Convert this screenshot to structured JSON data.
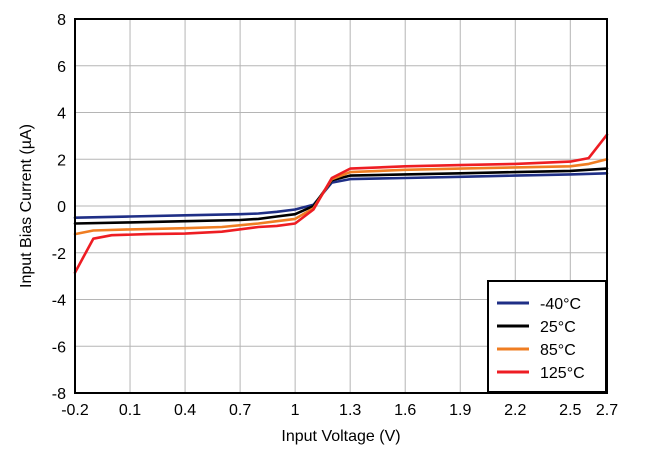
{
  "chart_data": {
    "type": "line",
    "xlabel": "Input Voltage (V)",
    "ylabel": "Input Bias Current (µA)",
    "xlim": [
      -0.2,
      2.7
    ],
    "ylim": [
      -8,
      8
    ],
    "x_ticks": [
      -0.2,
      0.1,
      0.4,
      0.7,
      1,
      1.3,
      1.6,
      1.9,
      2.2,
      2.5,
      2.7
    ],
    "x_tick_labels": [
      "-0.2",
      "0.1",
      "0.4",
      "0.7",
      "1",
      "1.3",
      "1.6",
      "1.9",
      "2.2",
      "2.5",
      "2.7"
    ],
    "y_ticks": [
      -8,
      -6,
      -4,
      -2,
      0,
      2,
      4,
      6,
      8
    ],
    "y_tick_labels": [
      "-8",
      "-6",
      "-4",
      "-2",
      "0",
      "2",
      "4",
      "6",
      "8"
    ],
    "grid": true,
    "legend_position": "bottom-right",
    "series": [
      {
        "name": "-40°C",
        "color": "#1f2f86",
        "points": [
          [
            -0.2,
            -0.5
          ],
          [
            0.1,
            -0.45
          ],
          [
            0.4,
            -0.4
          ],
          [
            0.7,
            -0.35
          ],
          [
            0.8,
            -0.32
          ],
          [
            0.9,
            -0.25
          ],
          [
            1.0,
            -0.15
          ],
          [
            1.1,
            0.05
          ],
          [
            1.2,
            1.0
          ],
          [
            1.3,
            1.15
          ],
          [
            1.6,
            1.2
          ],
          [
            1.9,
            1.25
          ],
          [
            2.2,
            1.3
          ],
          [
            2.5,
            1.35
          ],
          [
            2.7,
            1.4
          ]
        ]
      },
      {
        "name": "25°C",
        "color": "#000000",
        "points": [
          [
            -0.2,
            -0.75
          ],
          [
            0.1,
            -0.7
          ],
          [
            0.4,
            -0.65
          ],
          [
            0.7,
            -0.6
          ],
          [
            0.8,
            -0.55
          ],
          [
            0.9,
            -0.45
          ],
          [
            1.0,
            -0.35
          ],
          [
            1.1,
            0.0
          ],
          [
            1.2,
            1.1
          ],
          [
            1.3,
            1.3
          ],
          [
            1.6,
            1.35
          ],
          [
            1.9,
            1.4
          ],
          [
            2.2,
            1.45
          ],
          [
            2.5,
            1.5
          ],
          [
            2.7,
            1.6
          ]
        ]
      },
      {
        "name": "85°C",
        "color": "#ef7d22",
        "points": [
          [
            -0.2,
            -1.2
          ],
          [
            -0.1,
            -1.05
          ],
          [
            0.1,
            -1.0
          ],
          [
            0.4,
            -0.95
          ],
          [
            0.6,
            -0.9
          ],
          [
            0.8,
            -0.75
          ],
          [
            0.9,
            -0.65
          ],
          [
            1.0,
            -0.55
          ],
          [
            1.1,
            -0.1
          ],
          [
            1.2,
            1.15
          ],
          [
            1.3,
            1.45
          ],
          [
            1.6,
            1.55
          ],
          [
            1.9,
            1.6
          ],
          [
            2.2,
            1.65
          ],
          [
            2.5,
            1.7
          ],
          [
            2.6,
            1.8
          ],
          [
            2.7,
            2.0
          ]
        ]
      },
      {
        "name": "125°C",
        "color": "#ee1d23",
        "points": [
          [
            -0.2,
            -2.85
          ],
          [
            -0.1,
            -1.4
          ],
          [
            0.0,
            -1.25
          ],
          [
            0.2,
            -1.2
          ],
          [
            0.4,
            -1.18
          ],
          [
            0.6,
            -1.1
          ],
          [
            0.8,
            -0.9
          ],
          [
            0.9,
            -0.85
          ],
          [
            1.0,
            -0.75
          ],
          [
            1.1,
            -0.15
          ],
          [
            1.2,
            1.2
          ],
          [
            1.3,
            1.6
          ],
          [
            1.6,
            1.7
          ],
          [
            1.9,
            1.75
          ],
          [
            2.2,
            1.8
          ],
          [
            2.5,
            1.9
          ],
          [
            2.6,
            2.05
          ],
          [
            2.7,
            3.05
          ]
        ]
      }
    ]
  }
}
